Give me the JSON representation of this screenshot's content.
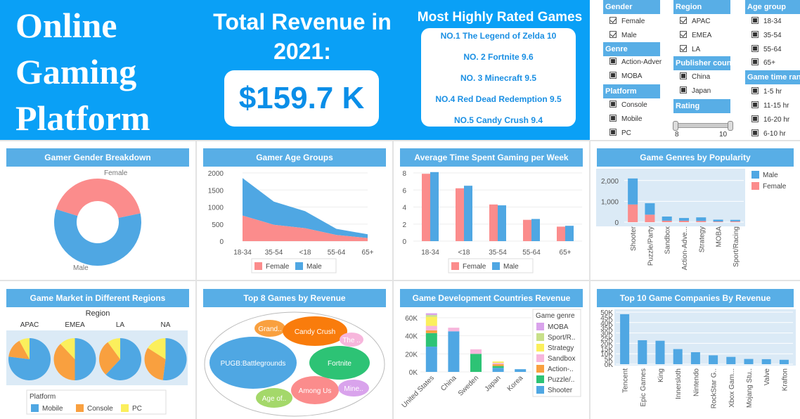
{
  "header": {
    "title_lines": [
      "Online",
      "Gaming",
      "Platform"
    ],
    "revenue_title": "Total Revenue in 2021:",
    "revenue_value": "$159.7 K",
    "top_games_title": "Most Highly Rated Games",
    "top_games": [
      "NO.1 The Legend of Zelda 10",
      "NO. 2 Fortnite  9.6",
      "NO. 3 Minecraft 9.5",
      "NO.4 Red Dead Redemption 9.5",
      "NO.5 Candy Crush  9.4"
    ]
  },
  "filters": {
    "gender": {
      "label": "Gender",
      "options": [
        {
          "label": "Female",
          "checked": true
        },
        {
          "label": "Male",
          "checked": true
        }
      ]
    },
    "genre": {
      "label": "Genre",
      "options": [
        {
          "label": "Action-Adver",
          "checked": false
        },
        {
          "label": "MOBA",
          "checked": false
        }
      ]
    },
    "platform": {
      "label": "Platform",
      "options": [
        {
          "label": "Console",
          "checked": false
        },
        {
          "label": "Mobile",
          "checked": false
        },
        {
          "label": "PC",
          "checked": false
        }
      ]
    },
    "region": {
      "label": "Region",
      "options": [
        {
          "label": "APAC",
          "checked": true
        },
        {
          "label": "EMEA",
          "checked": true
        },
        {
          "label": "LA",
          "checked": true
        }
      ]
    },
    "publisher": {
      "label": "Publisher count",
      "options": [
        {
          "label": "China",
          "checked": false
        },
        {
          "label": "Japan",
          "checked": false
        }
      ]
    },
    "rating": {
      "label": "Rating",
      "min": "8",
      "max": "10"
    },
    "age": {
      "label": "Age group",
      "options": [
        {
          "label": "18-34",
          "checked": false
        },
        {
          "label": "35-54",
          "checked": false
        },
        {
          "label": "55-64",
          "checked": false
        },
        {
          "label": "65+",
          "checked": false
        }
      ]
    },
    "gametime": {
      "label": "Game time rang",
      "options": [
        {
          "label": "1-5 hr",
          "checked": false
        },
        {
          "label": "11-15 hr",
          "checked": false
        },
        {
          "label": "16-20 hr",
          "checked": false
        },
        {
          "label": "6-10 hr",
          "checked": false
        }
      ]
    }
  },
  "panels": {
    "gender": "Gamer Gender Breakdown",
    "age": "Gamer Age Groups",
    "time": "Average Time Spent Gaming per Week",
    "genres": "Game Genres by Popularity",
    "regions": "Game Market in Different Regions",
    "top8": "Top 8 Games by Revenue",
    "countries": "Game Development Countries Revenue",
    "companies": "Top 10 Game Companies By Revenue"
  },
  "colors": {
    "header_blue": "#0aa0f6",
    "panel_title": "#58aee6",
    "male": "#4fa7e3",
    "female": "#fb8c8c",
    "mobile": "#4fa7e3",
    "console": "#f9a03f",
    "pc": "#fbef5c"
  },
  "chart_data": [
    {
      "type": "pie",
      "title": "Gamer Gender Breakdown",
      "categories": [
        "Female",
        "Male"
      ],
      "values": [
        42,
        58
      ]
    },
    {
      "type": "area",
      "title": "Gamer Age Groups",
      "categories": [
        "18-34",
        "35-54",
        "<18",
        "55-64",
        "65+"
      ],
      "ylim": [
        0,
        2000
      ],
      "yticks": [
        "0",
        "500",
        "1000",
        "1500",
        "2000"
      ],
      "series": [
        {
          "name": "Female",
          "values": [
            750,
            480,
            380,
            180,
            90
          ]
        },
        {
          "name": "Male",
          "values": [
            1100,
            680,
            500,
            180,
            110
          ]
        }
      ],
      "legend": [
        "Female",
        "Male"
      ]
    },
    {
      "type": "bar",
      "title": "Average Time Spent Gaming per Week",
      "categories": [
        "18-34",
        "<18",
        "35-54",
        "55-64",
        "65+"
      ],
      "ylim": [
        0,
        8
      ],
      "yticks": [
        "0",
        "2",
        "4",
        "6",
        "8"
      ],
      "series": [
        {
          "name": "Female",
          "values": [
            7.9,
            6.2,
            4.3,
            2.5,
            1.7
          ]
        },
        {
          "name": "Male",
          "values": [
            8.1,
            6.5,
            4.2,
            2.6,
            1.8
          ]
        }
      ]
    },
    {
      "type": "bar",
      "title": "Game Genres by Popularity",
      "categories": [
        "Shooter",
        "Puzzle/Party",
        "Sandbox",
        "Action-Adve...",
        "Strategy",
        "MOBA",
        "Sport/Racing"
      ],
      "yticks": [
        "0",
        "1,000",
        "2,000"
      ],
      "series": [
        {
          "name": "Male",
          "values": [
            1250,
            550,
            200,
            130,
            170,
            90,
            70
          ]
        },
        {
          "name": "Female",
          "values": [
            850,
            360,
            70,
            70,
            60,
            30,
            40
          ]
        }
      ]
    },
    {
      "type": "pie",
      "title": "Game Market in Different Regions",
      "facet_label": "Region",
      "legend_title": "Platform",
      "categories": [
        "Mobile",
        "Console",
        "PC"
      ],
      "facets": [
        {
          "name": "APAC",
          "values": [
            77,
            15,
            8
          ]
        },
        {
          "name": "EMEA",
          "values": [
            50,
            38,
            12
          ]
        },
        {
          "name": "LA",
          "values": [
            62,
            28,
            10
          ]
        },
        {
          "name": "NA",
          "values": [
            52,
            32,
            16
          ]
        }
      ]
    },
    {
      "type": "scatter",
      "title": "Top 8 Games by Revenue",
      "labels": [
        "Grand..",
        "Candy Crush",
        "The ..",
        "PUGB:Battlegrounds",
        "Fortnite",
        "Among Us",
        "Mine..",
        "Age of.."
      ],
      "values": [
        5,
        22,
        3,
        45,
        18,
        12,
        4,
        6
      ]
    },
    {
      "type": "bar",
      "title": "Game Development Countries Revenue",
      "categories": [
        "United States",
        "China",
        "Sweden",
        "Japan",
        "Korea"
      ],
      "yticks": [
        "0K",
        "20K",
        "40K",
        "60K"
      ],
      "legend_title": "Game genre",
      "series": [
        {
          "name": "MOBA",
          "values": [
            2000,
            0,
            0,
            0,
            0
          ]
        },
        {
          "name": "Sport/R..",
          "values": [
            2000,
            0,
            0,
            0,
            0
          ]
        },
        {
          "name": "Strategy",
          "values": [
            10000,
            0,
            0,
            1500,
            0
          ]
        },
        {
          "name": "Sandbox",
          "values": [
            5000,
            4000,
            5000,
            1500,
            0
          ]
        },
        {
          "name": "Action-..",
          "values": [
            3000,
            0,
            0,
            2000,
            0
          ]
        },
        {
          "name": "Puzzle/..",
          "values": [
            15000,
            0,
            20000,
            2000,
            0
          ]
        },
        {
          "name": "Shooter",
          "values": [
            28000,
            45000,
            0,
            4500,
            3000
          ]
        }
      ]
    },
    {
      "type": "bar",
      "title": "Top 10 Game Companies By Revenue",
      "categories": [
        "Tencent",
        "Epic Games",
        "King",
        "Innersloth",
        "Nintendo",
        "RockStar G..",
        "Xbox Gam...",
        "Mojang Stu..",
        "Valve",
        "Krafton"
      ],
      "yticks": [
        "0K",
        "5K",
        "10K",
        "15K",
        "20K",
        "25K",
        "30K",
        "35K",
        "40K",
        "45K",
        "50K"
      ],
      "values": [
        48000,
        23000,
        22500,
        14500,
        11500,
        8500,
        7000,
        5000,
        4800,
        4200
      ]
    }
  ]
}
